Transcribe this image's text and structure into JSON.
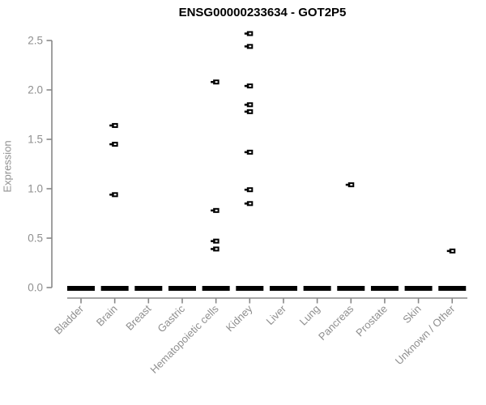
{
  "title": "ENSG00000233634 - GOT2P5",
  "colors": {
    "point": "#000000",
    "point_inner": "#ffffff",
    "axis_line": "#888888",
    "axis_text": "#8f8f8f",
    "title_text": "#000000",
    "background": "#ffffff"
  },
  "chart_data": {
    "type": "scatter",
    "title": "ENSG00000233634 - GOT2P5",
    "xlabel": "",
    "ylabel": "Expression",
    "ylim": [
      0.0,
      2.5
    ],
    "yticks": [
      0.0,
      0.5,
      1.0,
      1.5,
      2.0,
      2.5
    ],
    "grid": false,
    "legend": "none",
    "marker": "black square with white center dash and left tick",
    "zero_dash_note": "thick horizontal black dash at 0.0 in every category formed by many overlapping zero-expression points",
    "categories": [
      {
        "label": "Bladder",
        "zero_dash": true,
        "values": []
      },
      {
        "label": "Brain",
        "zero_dash": true,
        "values": [
          0.94,
          1.45,
          1.64
        ]
      },
      {
        "label": "Breast",
        "zero_dash": true,
        "values": []
      },
      {
        "label": "Gastric",
        "zero_dash": true,
        "values": []
      },
      {
        "label": "Hematopoietic cells",
        "zero_dash": true,
        "values": [
          0.39,
          0.47,
          0.78,
          2.08
        ]
      },
      {
        "label": "Kidney",
        "zero_dash": true,
        "values": [
          0.85,
          0.99,
          1.37,
          1.78,
          1.85,
          2.04,
          2.44,
          2.57
        ]
      },
      {
        "label": "Liver",
        "zero_dash": true,
        "values": []
      },
      {
        "label": "Lung",
        "zero_dash": true,
        "values": []
      },
      {
        "label": "Pancreas",
        "zero_dash": true,
        "values": [
          1.04
        ]
      },
      {
        "label": "Prostate",
        "zero_dash": true,
        "values": []
      },
      {
        "label": "Skin",
        "zero_dash": true,
        "values": []
      },
      {
        "label": "Unknown / Other",
        "zero_dash": true,
        "values": [
          0.37
        ]
      }
    ]
  }
}
